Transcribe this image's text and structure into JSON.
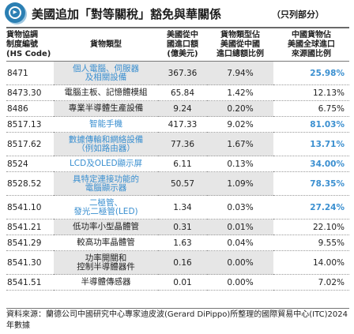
{
  "title": {
    "main": "美國追加「對等關稅」豁免與華關係",
    "note": "（只列部分）"
  },
  "table": {
    "headers": {
      "code": "貨物協調\n制度編號\n(HS Code)",
      "type": "貨物類型",
      "import_value": "美國從中\n國進口額\n(億美元)",
      "share_of_total": "貨物類型佔\n美國從中國\n進口總額比例",
      "china_share": "中國貨物佔\n美國全球進口\n來源國比例"
    },
    "rows": [
      {
        "code": "8471",
        "type": "個人電腦、伺服器\n及相關設備",
        "value": "367.36",
        "share": "7.94%",
        "china": "25.98%",
        "hl": true,
        "tall": true,
        "shaded": true
      },
      {
        "code": "8473.30",
        "type": "電腦主板、記憶體模組",
        "value": "65.84",
        "share": "1.42%",
        "china": "12.13%",
        "hl": false,
        "tall": false,
        "shaded": false
      },
      {
        "code": "8486",
        "type": "專業半導體生產設備",
        "value": "9.24",
        "share": "0.20%",
        "china": "6.75%",
        "hl": false,
        "tall": false,
        "shaded": true
      },
      {
        "code": "8517.13",
        "type": "智能手機",
        "value": "417.33",
        "share": "9.02%",
        "china": "81.03%",
        "hl": true,
        "tall": false,
        "shaded": false
      },
      {
        "code": "8517.62",
        "type": "數據傳輸和網絡設備\n（例如路由器）",
        "value": "77.36",
        "share": "1.67%",
        "china": "13.71%",
        "hl": true,
        "tall": true,
        "shaded": true
      },
      {
        "code": "8524",
        "type": "LCD及OLED顯示屏",
        "value": "6.11",
        "share": "0.13%",
        "china": "34.00%",
        "hl": true,
        "tall": false,
        "shaded": false
      },
      {
        "code": "8528.52",
        "type": "具特定連接功能的\n電腦顯示器",
        "value": "50.57",
        "share": "1.09%",
        "china": "78.35%",
        "hl": true,
        "tall": true,
        "shaded": true
      },
      {
        "code": "8541.10",
        "type": "二極管、\n發光二極管(LED)",
        "value": "1.34",
        "share": "0.03%",
        "china": "27.24%",
        "hl": true,
        "tall": true,
        "shaded": false
      },
      {
        "code": "8541.21",
        "type": "低功率小型晶體管",
        "value": "0.31",
        "share": "0.01%",
        "china": "22.10%",
        "hl": false,
        "tall": false,
        "shaded": true
      },
      {
        "code": "8541.29",
        "type": "較高功率晶體管",
        "value": "1.63",
        "share": "0.04%",
        "china": "9.55%",
        "hl": false,
        "tall": false,
        "shaded": false
      },
      {
        "code": "8541.30",
        "type": "功率開關和\n控制半導體器件",
        "value": "0.16",
        "share": "0.00%",
        "china": "14.00%",
        "hl": false,
        "tall": true,
        "shaded": true
      },
      {
        "code": "8541.51",
        "type": "半導體傳感器",
        "value": "0.01",
        "share": "0.00%",
        "china": "7.02%",
        "hl": false,
        "tall": false,
        "shaded": false
      }
    ]
  },
  "source": "資料來源：蘭德公司中國研究中心專家迪皮波(Gerard DiPippo)所整理的國際貿易中心(ITC)2024年數據"
}
